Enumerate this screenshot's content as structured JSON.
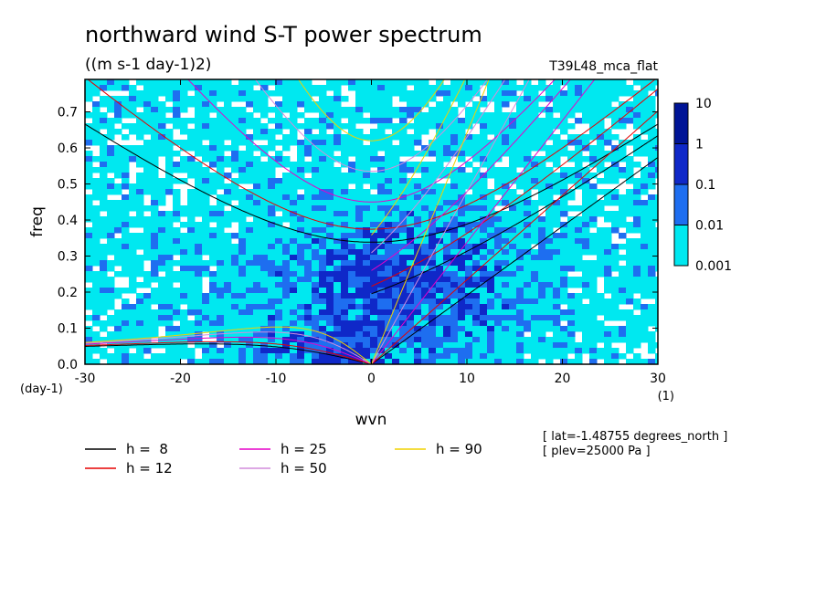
{
  "chart_data": {
    "type": "heatmap",
    "title": "northward wind S-T power spectrum",
    "subtitle": "((m s-1 day-1)2)",
    "run_label": "T39L48_mca_flat",
    "xlabel": "wvn",
    "ylabel": "freq",
    "x_unit": "(1)",
    "y_unit": "(day-1)",
    "xlim": [
      -30,
      30
    ],
    "ylim": [
      0.0,
      0.79
    ],
    "x_ticks": [
      -30,
      -20,
      -10,
      0,
      10,
      20,
      30
    ],
    "x_tick_labels": [
      "-30",
      "-20",
      "-10",
      "0",
      "10",
      "20",
      "30"
    ],
    "y_ticks": [
      0.0,
      0.1,
      0.2,
      0.3,
      0.4,
      0.5,
      0.6,
      0.7
    ],
    "y_tick_labels": [
      "0.0",
      "0.1",
      "0.2",
      "0.3",
      "0.4",
      "0.5",
      "0.6",
      "0.7"
    ],
    "colorbar": {
      "levels": [
        0.001,
        0.01,
        0.1,
        1,
        10
      ],
      "labels": [
        "0.001",
        "0.01",
        "0.1",
        "1",
        "10"
      ],
      "colors": [
        "#00e8f0",
        "#1e6ef0",
        "#0f28c8",
        "#001496"
      ]
    },
    "dispersion_curves": [
      {
        "label": "h =  8",
        "color": "#000000",
        "depth": 8
      },
      {
        "label": "h = 12",
        "color": "#e60000",
        "depth": 12
      },
      {
        "label": "h = 25",
        "color": "#e600c8",
        "depth": 25
      },
      {
        "label": "h = 50",
        "color": "#d28cdc",
        "depth": 50
      },
      {
        "label": "h = 90",
        "color": "#f0d200",
        "depth": 90
      }
    ],
    "annotations": [
      "[ lat=-1.48755 degrees_north ]",
      "[ plev=25000 Pa ]"
    ],
    "grid": false,
    "legend_position": "bottom"
  }
}
